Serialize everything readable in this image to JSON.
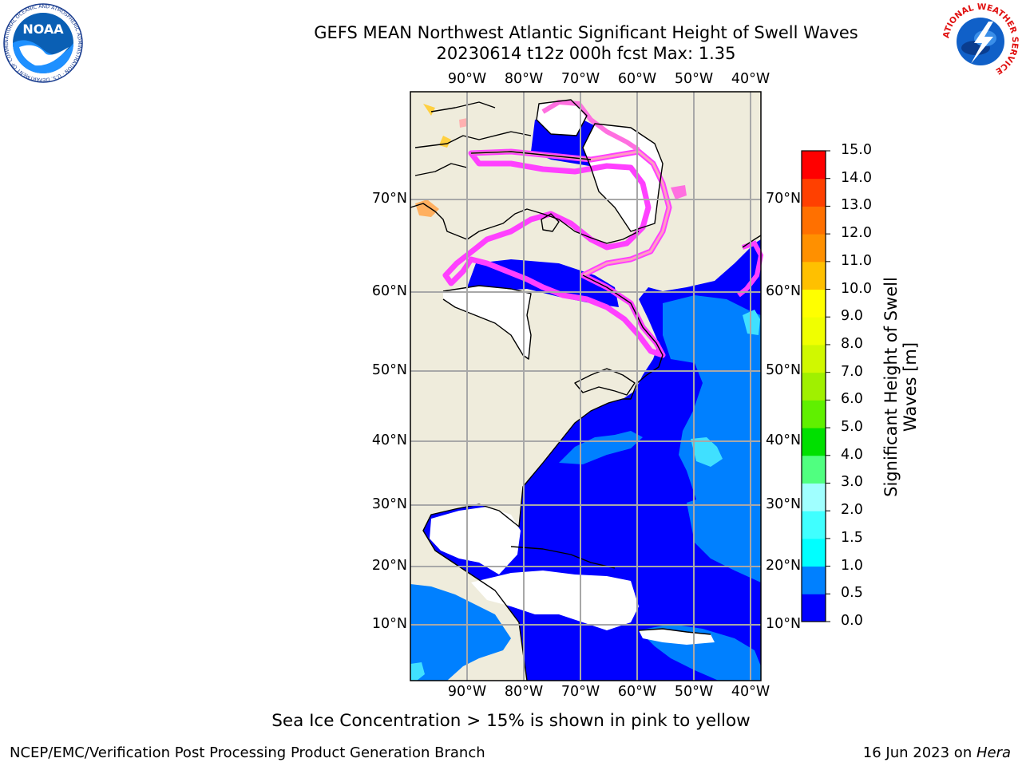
{
  "title": {
    "line1": "GEFS MEAN Northwest Atlantic Significant Height of Swell Waves",
    "line2": "20230614 t12z 000h fcst   Max: 1.35"
  },
  "map": {
    "lon_ticks": [
      "90°W",
      "80°W",
      "70°W",
      "60°W",
      "50°W",
      "40°W"
    ],
    "lat_ticks": [
      "70°N",
      "60°N",
      "50°N",
      "40°N",
      "30°N",
      "20°N",
      "10°N"
    ],
    "land_color": "#efecdc",
    "ocean_fill_colors": [
      "#0000ff",
      "#0080ff",
      "#40e0ff"
    ],
    "ice_colors": [
      "#ff40ff",
      "#ffa0a0",
      "#ffd040"
    ]
  },
  "colorbar": {
    "title_line1": "Significant Height of Swell",
    "title_line2": "Waves [m]",
    "ticks": [
      "0.0",
      "0.5",
      "1.0",
      "1.5",
      "2.0",
      "3.0",
      "4.0",
      "5.0",
      "6.0",
      "7.0",
      "8.0",
      "9.0",
      "10.0",
      "11.0",
      "12.0",
      "13.0",
      "14.0",
      "15.0"
    ],
    "colors": [
      "#0000ff",
      "#0080ff",
      "#00ffff",
      "#40ffff",
      "#a0ffff",
      "#50ff80",
      "#00e000",
      "#60f000",
      "#a0f000",
      "#d0f800",
      "#f0ff00",
      "#ffff00",
      "#ffc000",
      "#ff9000",
      "#ff7000",
      "#ff4000",
      "#ff0000"
    ]
  },
  "caption": "Sea Ice Concentration > 15% is shown in pink to yellow",
  "footer": {
    "left": "NCEP/EMC/Verification Post Processing Product Generation Branch",
    "right_prefix": "16 Jun 2023 on ",
    "right_italic": "Hera"
  },
  "logos": {
    "noaa": "NOAA",
    "noaa_ring": "NATIONAL OCEANIC AND ATMOSPHERIC ADMINISTRATION · U.S. DEPARTMENT OF COMMERCE",
    "nws_ring": "NATIONAL WEATHER SERVICE"
  }
}
